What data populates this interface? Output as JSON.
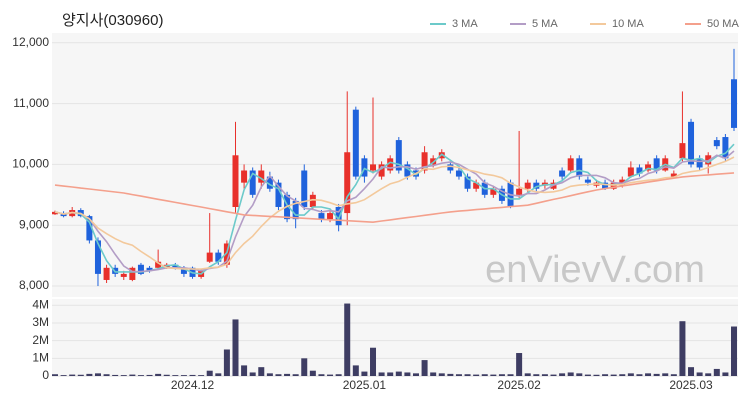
{
  "chart_data": {
    "type": "candlestick",
    "title": "양지사(030960)",
    "watermark": "enVievV.com",
    "categories": [
      null,
      null,
      null,
      null,
      null,
      null,
      null,
      null,
      null,
      null,
      null,
      null,
      null,
      null,
      null,
      null,
      "2024.12",
      null,
      null,
      null,
      null,
      null,
      null,
      null,
      null,
      null,
      null,
      null,
      null,
      null,
      null,
      null,
      null,
      null,
      null,
      null,
      "2025.01",
      null,
      null,
      null,
      null,
      null,
      null,
      null,
      null,
      null,
      null,
      null,
      null,
      null,
      null,
      null,
      null,
      null,
      "2025.02",
      null,
      null,
      null,
      null,
      null,
      null,
      null,
      null,
      null,
      null,
      null,
      null,
      null,
      null,
      null,
      null,
      null,
      null,
      null,
      "2025.03",
      null,
      null,
      null,
      null,
      null
    ],
    "open": [
      9180,
      9200,
      9150,
      9250,
      9150,
      8750,
      8100,
      8300,
      8150,
      8100,
      8350,
      8300,
      8300,
      8300,
      8350,
      8300,
      8300,
      8150,
      8400,
      8550,
      8350,
      9300,
      9700,
      9900,
      9700,
      9800,
      9700,
      9500,
      9400,
      9900,
      9300,
      9200,
      9100,
      9300,
      9200,
      10900,
      10100,
      9900,
      9800,
      9900,
      10400,
      10000,
      9900,
      9900,
      10000,
      10100,
      10000,
      9900,
      9800,
      9600,
      9700,
      9500,
      9600,
      9700,
      9500,
      9600,
      9700,
      9650,
      9600,
      9900,
      9900,
      10100,
      9750,
      9650,
      9700,
      9600,
      9650,
      9800,
      9950,
      9900,
      10100,
      9900,
      9800,
      10100,
      10700,
      10100,
      10000,
      10400,
      10450,
      11400
    ],
    "high": [
      9240,
      9230,
      9300,
      9280,
      9170,
      8800,
      8350,
      8350,
      8250,
      8320,
      8380,
      8330,
      8600,
      8380,
      8380,
      8330,
      8320,
      8280,
      9200,
      8600,
      8750,
      10700,
      10000,
      9950,
      10000,
      9880,
      9750,
      9550,
      9450,
      10000,
      9550,
      9250,
      9250,
      9350,
      11200,
      10950,
      10150,
      11100,
      10050,
      10150,
      10450,
      10050,
      9950,
      10300,
      10150,
      10250,
      10050,
      9950,
      9850,
      9750,
      9750,
      9650,
      9650,
      9750,
      10550,
      9750,
      9750,
      9750,
      9750,
      9950,
      10150,
      10150,
      9800,
      9750,
      9750,
      9750,
      9800,
      10050,
      10000,
      10050,
      10150,
      10150,
      9900,
      11200,
      10750,
      10150,
      10200,
      10450,
      10500,
      11900
    ],
    "low": [
      9170,
      9130,
      9130,
      9130,
      8700,
      8000,
      8050,
      8150,
      8100,
      8080,
      8180,
      8220,
      8280,
      8280,
      8270,
      8150,
      8120,
      8120,
      8380,
      8350,
      8300,
      9200,
      9600,
      9450,
      9600,
      9550,
      9250,
      9050,
      8950,
      9250,
      9250,
      9050,
      9050,
      8900,
      9000,
      9750,
      9700,
      9850,
      9750,
      9850,
      9850,
      9750,
      9750,
      9850,
      9950,
      10050,
      9850,
      9750,
      9550,
      9550,
      9450,
      9450,
      9350,
      9280,
      9450,
      9550,
      9550,
      9600,
      9580,
      9750,
      9850,
      9750,
      9650,
      9620,
      9580,
      9580,
      9620,
      9780,
      9800,
      9870,
      9850,
      9880,
      9780,
      10050,
      9950,
      9900,
      9850,
      10250,
      10050,
      10550
    ],
    "close": [
      9220,
      9150,
      9250,
      9150,
      8750,
      8200,
      8300,
      8200,
      8200,
      8300,
      8200,
      8250,
      8400,
      8350,
      8300,
      8200,
      8150,
      8250,
      8550,
      8400,
      8700,
      10150,
      9900,
      9500,
      9900,
      9600,
      9300,
      9100,
      9100,
      9300,
      9500,
      9100,
      9200,
      9000,
      10200,
      9800,
      9800,
      10000,
      10000,
      10100,
      9900,
      9800,
      9800,
      10200,
      10100,
      10200,
      9900,
      9800,
      9600,
      9700,
      9500,
      9600,
      9400,
      9300,
      9600,
      9700,
      9600,
      9700,
      9700,
      9800,
      10100,
      9800,
      9700,
      9700,
      9600,
      9700,
      9750,
      9950,
      9850,
      10000,
      9900,
      10100,
      9850,
      10350,
      10000,
      9950,
      10150,
      10300,
      10100,
      10600
    ],
    "volume": [
      100000,
      50000,
      80000,
      70000,
      120000,
      150000,
      100000,
      60000,
      50000,
      80000,
      50000,
      60000,
      120000,
      70000,
      50000,
      50000,
      60000,
      50000,
      300000,
      150000,
      1500000,
      3200000,
      600000,
      200000,
      500000,
      150000,
      100000,
      120000,
      100000,
      1000000,
      300000,
      100000,
      80000,
      100000,
      4100000,
      600000,
      250000,
      1600000,
      200000,
      200000,
      250000,
      200000,
      150000,
      900000,
      200000,
      150000,
      120000,
      100000,
      100000,
      80000,
      100000,
      80000,
      100000,
      100000,
      1300000,
      150000,
      100000,
      100000,
      80000,
      150000,
      200000,
      150000,
      80000,
      70000,
      100000,
      80000,
      100000,
      150000,
      100000,
      150000,
      120000,
      150000,
      100000,
      3100000,
      500000,
      200000,
      150000,
      400000,
      200000,
      2800000
    ],
    "ma_series": [
      {
        "name": "3 MA",
        "color": "#6ccaca",
        "values": [
          9220,
          9185,
          9207,
          9183,
          9050,
          8700,
          8417,
          8233,
          8233,
          8233,
          8233,
          8250,
          8283,
          8333,
          8350,
          8283,
          8217,
          8200,
          8317,
          8400,
          8550,
          9083,
          9583,
          9850,
          9767,
          9667,
          9600,
          9333,
          9167,
          9167,
          9300,
          9300,
          9267,
          9100,
          9467,
          9667,
          9933,
          9867,
          9933,
          10033,
          10000,
          9933,
          9833,
          9933,
          10033,
          10167,
          10067,
          9967,
          9767,
          9700,
          9600,
          9600,
          9500,
          9433,
          9433,
          9533,
          9633,
          9667,
          9667,
          9733,
          9867,
          9900,
          9867,
          9733,
          9667,
          9667,
          9683,
          9800,
          9850,
          9933,
          9917,
          10000,
          9950,
          10100,
          10067,
          10100,
          10033,
          10133,
          10183,
          10333
        ]
      },
      {
        "name": "5 MA",
        "color": "#b39dc6",
        "values": [
          9220,
          9185,
          9207,
          9193,
          9104,
          8900,
          8730,
          8520,
          8330,
          8240,
          8240,
          8250,
          8270,
          8300,
          8300,
          8300,
          8280,
          8250,
          8290,
          8310,
          8410,
          8810,
          9140,
          9330,
          9630,
          9810,
          9640,
          9480,
          9400,
          9280,
          9260,
          9220,
          9240,
          9220,
          9400,
          9460,
          9600,
          9760,
          9960,
          9940,
          9960,
          9960,
          9920,
          9960,
          9980,
          10020,
          10040,
          10000,
          9920,
          9840,
          9700,
          9640,
          9560,
          9500,
          9480,
          9520,
          9520,
          9580,
          9660,
          9700,
          9780,
          9820,
          9820,
          9820,
          9780,
          9700,
          9690,
          9740,
          9770,
          9850,
          9890,
          9960,
          9940,
          10040,
          10060,
          10050,
          10060,
          10150,
          10100,
          10220
        ]
      },
      {
        "name": "10 MA",
        "color": "#f3c99c",
        "values": [
          9220,
          9185,
          9207,
          9193,
          9104,
          8953,
          8860,
          8778,
          8713,
          8672,
          8570,
          8480,
          8380,
          8300,
          8290,
          8280,
          8280,
          8280,
          8300,
          8310,
          8360,
          8550,
          8700,
          8820,
          8980,
          9120,
          9230,
          9310,
          9360,
          9390,
          9420,
          9410,
          9370,
          9320,
          9350,
          9370,
          9420,
          9510,
          9600,
          9680,
          9720,
          9790,
          9850,
          9930,
          9920,
          9960,
          9970,
          9950,
          9910,
          9880,
          9840,
          9820,
          9780,
          9690,
          9630,
          9580,
          9550,
          9540,
          9550,
          9580,
          9640,
          9660,
          9670,
          9680,
          9670,
          9660,
          9670,
          9700,
          9720,
          9740,
          9750,
          9780,
          9790,
          9850,
          9880,
          9900,
          9950,
          10000,
          10050,
          10120
        ]
      },
      {
        "name": "50 MA",
        "color": "#f4a08c",
        "values": [
          9660,
          9644,
          9628,
          9611,
          9595,
          9579,
          9563,
          9546,
          9530,
          9504,
          9479,
          9453,
          9427,
          9401,
          9376,
          9350,
          9324,
          9299,
          9273,
          9247,
          9221,
          9196,
          9170,
          9162,
          9154,
          9146,
          9138,
          9130,
          9122,
          9114,
          9106,
          9098,
          9090,
          9082,
          9074,
          9066,
          9058,
          9050,
          9069,
          9088,
          9107,
          9126,
          9144,
          9163,
          9182,
          9201,
          9220,
          9232,
          9244,
          9257,
          9269,
          9281,
          9293,
          9306,
          9318,
          9330,
          9361,
          9393,
          9424,
          9455,
          9486,
          9518,
          9549,
          9580,
          9602,
          9623,
          9645,
          9666,
          9688,
          9709,
          9731,
          9752,
          9774,
          9795,
          9806,
          9817,
          9828,
          9839,
          9849,
          9860
        ]
      }
    ],
    "up_color": "#e8302b",
    "down_color": "#1f62dc",
    "volume_color": "#3e3d63",
    "ylim": [
      7820,
      12210
    ],
    "yticks": [
      {
        "value": 8000,
        "label": "8,000"
      },
      {
        "value": 9000,
        "label": "9,000"
      },
      {
        "value": 10000,
        "label": "10,000"
      },
      {
        "value": 11000,
        "label": "11,000"
      },
      {
        "value": 12000,
        "label": "12,000"
      }
    ],
    "volume_ylim": [
      0,
      4300000
    ],
    "volume_yticks": [
      0,
      {
        "value": 1000000,
        "label": "1M"
      },
      {
        "value": 2000000,
        "label": "2M"
      },
      {
        "value": 3000000,
        "label": "3M"
      },
      {
        "value": 4000000,
        "label": "4M"
      }
    ],
    "grid": true
  }
}
